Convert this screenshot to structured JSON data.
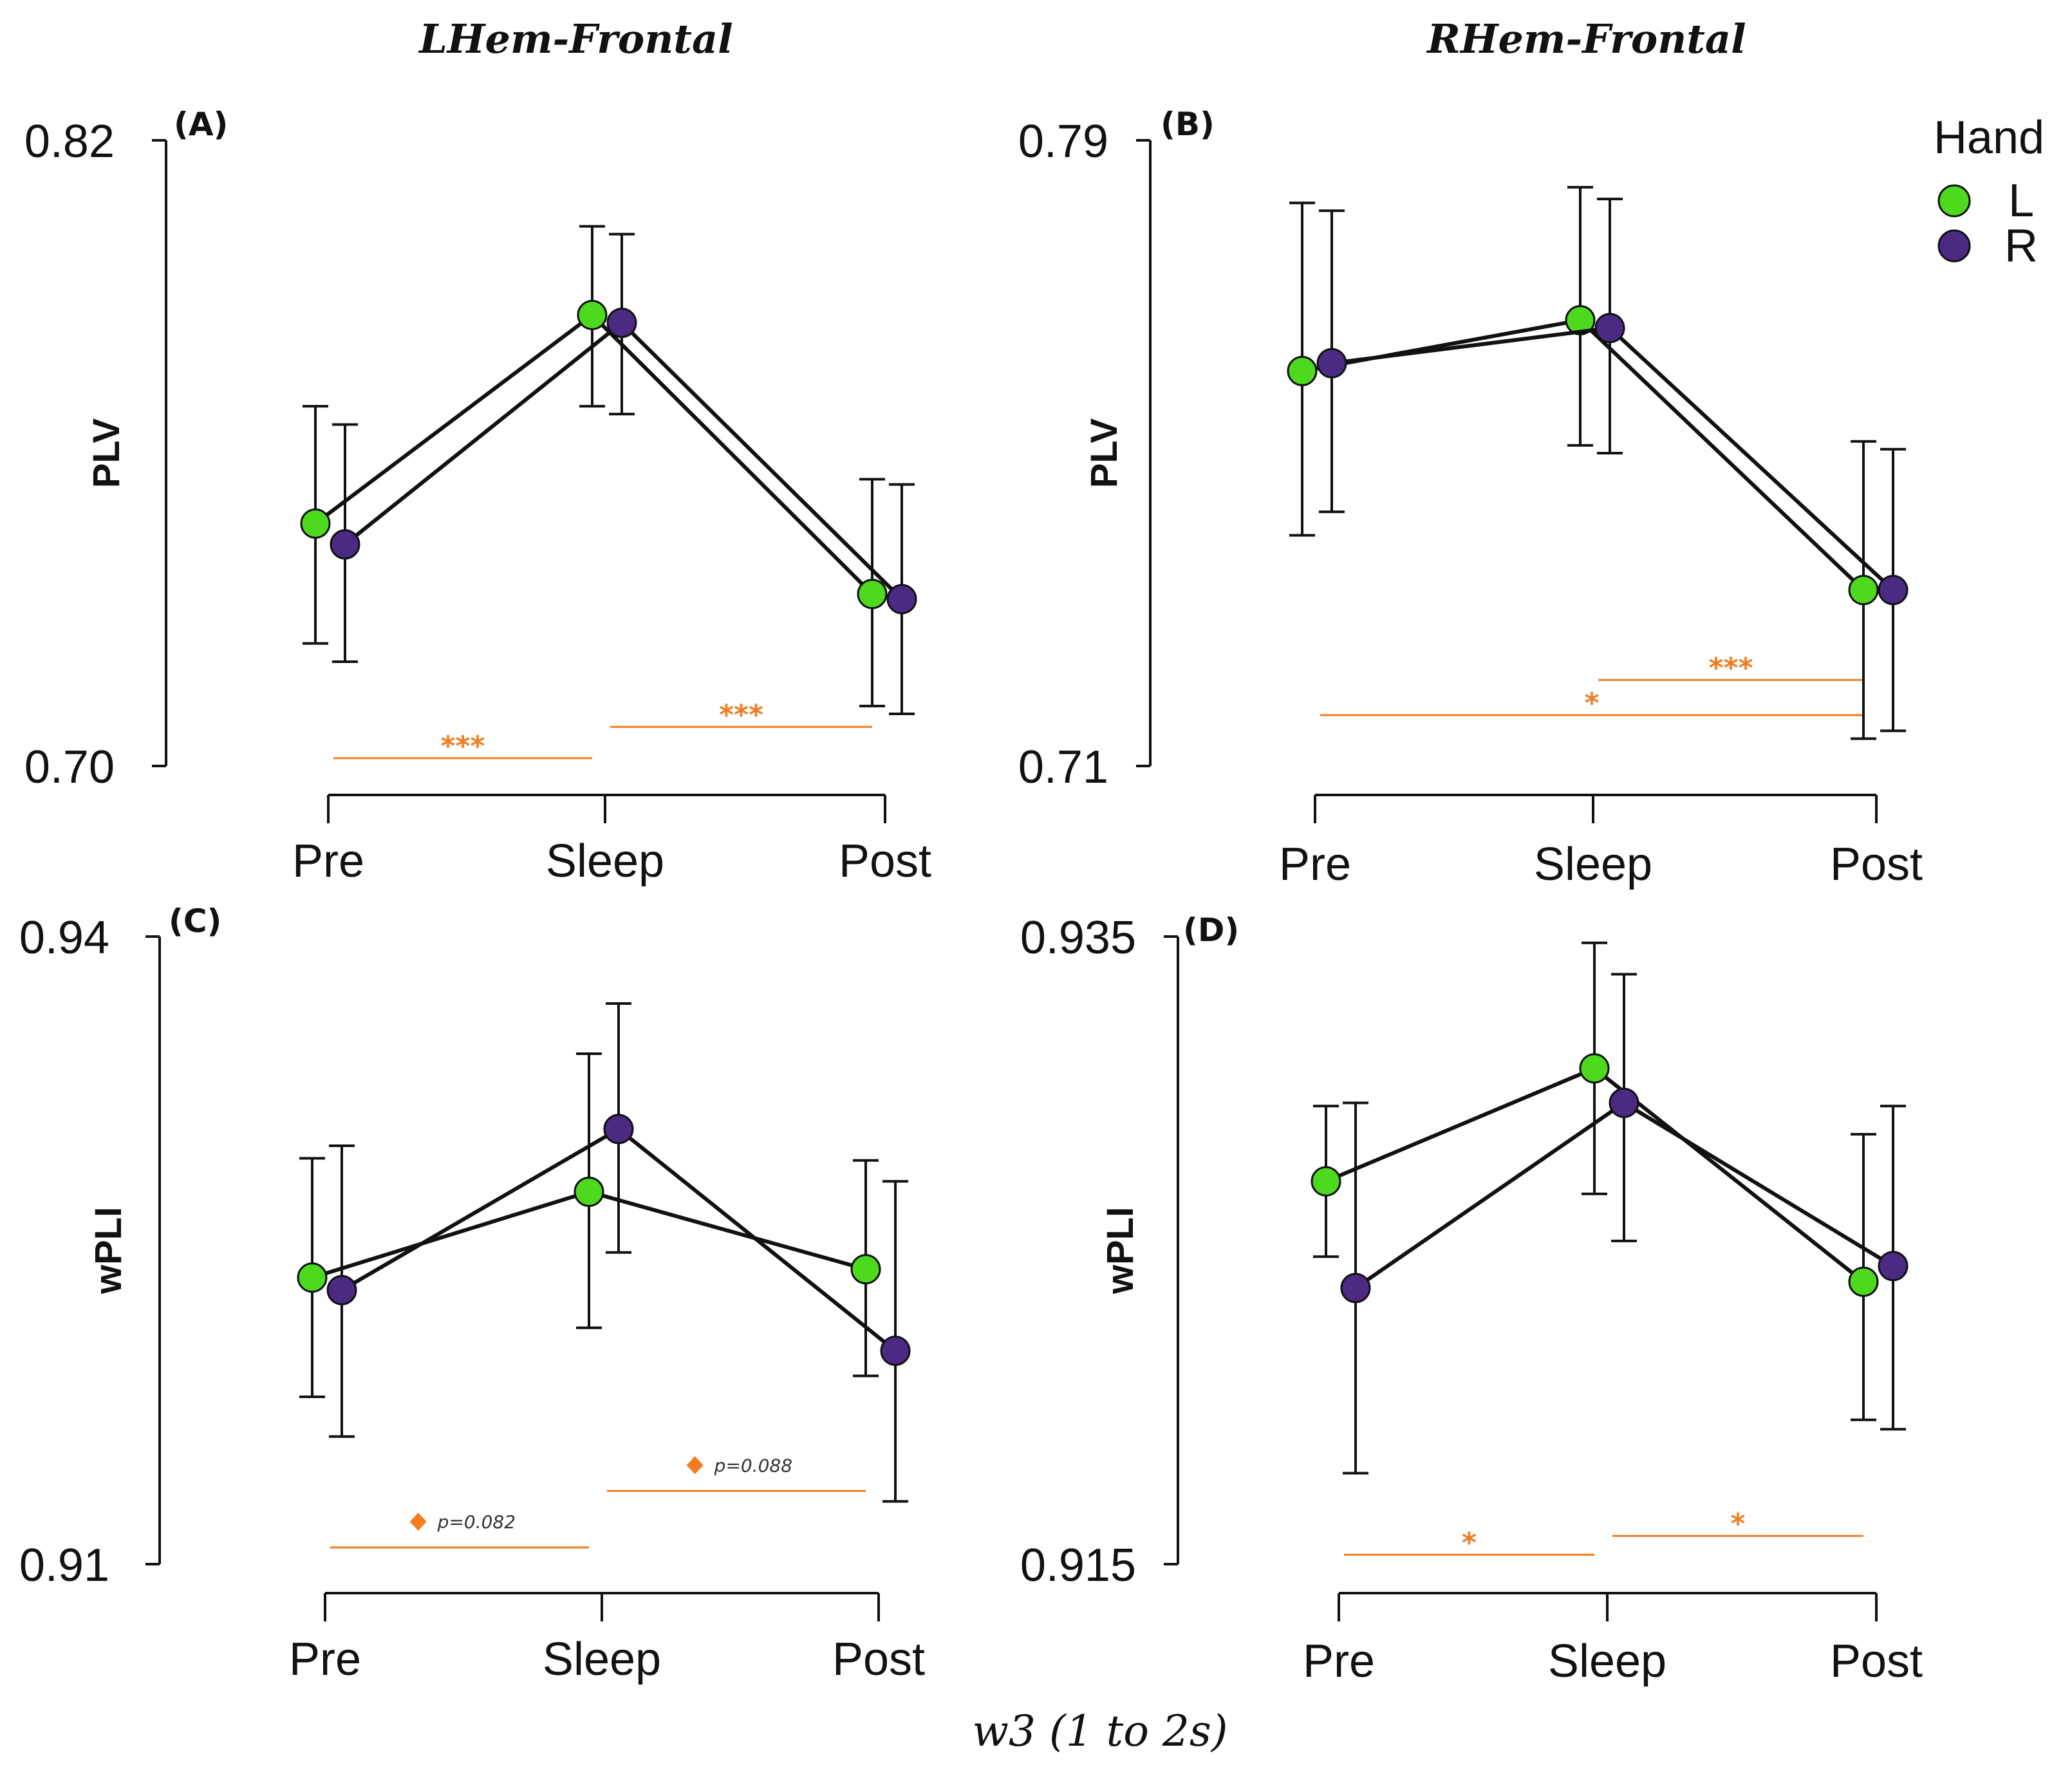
{
  "column_titles": [
    "LHem-Frontal",
    "RHem-Frontal"
  ],
  "footer_title": "w3 (1 to 2s)",
  "legend": {
    "title": "Hand",
    "items": [
      {
        "label": "L",
        "color": "#4cd91e"
      },
      {
        "label": "R",
        "color": "#4b2a83"
      }
    ]
  },
  "colors": {
    "sig": "#f07d22",
    "line": "#111111"
  },
  "chart_data": [
    {
      "type": "line",
      "panel": "(A)",
      "ylabel": "PLV",
      "categories": [
        "Pre",
        "Sleep",
        "Post"
      ],
      "ylim": [
        0.7,
        0.82
      ],
      "ytick_labels": [
        "0.82",
        "0.70"
      ],
      "series": [
        {
          "name": "L",
          "values": [
            0.7465,
            0.7865,
            0.733
          ],
          "lower": [
            0.7235,
            0.769,
            0.7115
          ],
          "upper": [
            0.769,
            0.8035,
            0.755
          ]
        },
        {
          "name": "R",
          "values": [
            0.7425,
            0.785,
            0.732
          ],
          "lower": [
            0.72,
            0.7675,
            0.71
          ],
          "upper": [
            0.7655,
            0.802,
            0.754
          ]
        }
      ],
      "significance": [
        {
          "from": "Pre",
          "to": "Sleep",
          "label": "***",
          "level": 0.7015
        },
        {
          "from": "Sleep",
          "to": "Post",
          "label": "***",
          "level": 0.7075
        }
      ]
    },
    {
      "type": "line",
      "panel": "(B)",
      "ylabel": "PLV",
      "categories": [
        "Pre",
        "Sleep",
        "Post"
      ],
      "ylim": [
        0.71,
        0.79
      ],
      "ytick_labels": [
        "0.79",
        "0.71"
      ],
      "series": [
        {
          "name": "L",
          "values": [
            0.7605,
            0.767,
            0.7325
          ],
          "lower": [
            0.7395,
            0.751,
            0.7135
          ],
          "upper": [
            0.782,
            0.784,
            0.7515
          ]
        },
        {
          "name": "R",
          "values": [
            0.7615,
            0.766,
            0.7325
          ],
          "lower": [
            0.7425,
            0.75,
            0.7145
          ],
          "upper": [
            0.781,
            0.7825,
            0.7505
          ]
        }
      ],
      "significance": [
        {
          "from": "Sleep",
          "to": "Post",
          "label": "***",
          "level": 0.721
        },
        {
          "from": "Pre",
          "to": "Post",
          "label": "*",
          "level": 0.7165
        }
      ]
    },
    {
      "type": "line",
      "panel": "(C)",
      "ylabel": "wPLI",
      "categories": [
        "Pre",
        "Sleep",
        "Post"
      ],
      "ylim": [
        0.91,
        0.94
      ],
      "ytick_labels": [
        "0.94",
        "0.91"
      ],
      "series": [
        {
          "name": "L",
          "values": [
            0.9237,
            0.9278,
            0.9241
          ],
          "lower": [
            0.918,
            0.9213,
            0.919
          ],
          "upper": [
            0.9294,
            0.9344,
            0.9293
          ]
        },
        {
          "name": "R",
          "values": [
            0.9231,
            0.9308,
            0.9202
          ],
          "lower": [
            0.9161,
            0.9249,
            0.913
          ],
          "upper": [
            0.93,
            0.9368,
            0.9283
          ]
        }
      ],
      "significance": [
        {
          "from": "Pre",
          "to": "Sleep",
          "label": "p=0.082",
          "level": 0.9108
        },
        {
          "from": "Sleep",
          "to": "Post",
          "label": "p=0.088",
          "level": 0.9135
        }
      ]
    },
    {
      "type": "line",
      "panel": "(D)",
      "ylabel": "wPLI",
      "categories": [
        "Pre",
        "Sleep",
        "Post"
      ],
      "ylim": [
        0.915,
        0.935
      ],
      "ytick_labels": [
        "0.935",
        "0.915"
      ],
      "series": [
        {
          "name": "L",
          "values": [
            0.9272,
            0.9308,
            0.924
          ],
          "lower": [
            0.9248,
            0.9268,
            0.9196
          ],
          "upper": [
            0.9296,
            0.9348,
            0.9287
          ]
        },
        {
          "name": "R",
          "values": [
            0.9238,
            0.9297,
            0.9245
          ],
          "lower": [
            0.9179,
            0.9253,
            0.9193
          ],
          "upper": [
            0.9297,
            0.9338,
            0.9296
          ]
        }
      ],
      "significance": [
        {
          "from": "Pre",
          "to": "Sleep",
          "label": "*",
          "level": 0.9153
        },
        {
          "from": "Sleep",
          "to": "Post",
          "label": "*",
          "level": 0.9159
        }
      ]
    }
  ]
}
